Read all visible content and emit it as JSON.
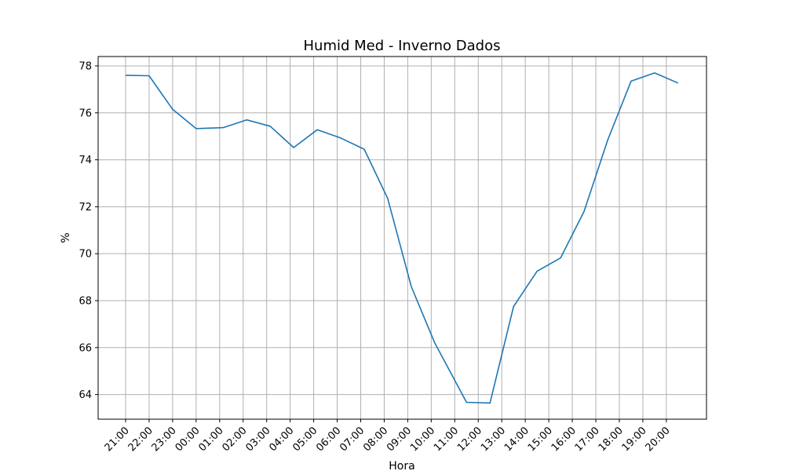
{
  "chart_data": {
    "type": "line",
    "title": "Humid Med - Inverno Dados",
    "xlabel": "Hora",
    "ylabel": "%",
    "grid": true,
    "ylim": [
      62.95,
      78.4
    ],
    "yticks": [
      64,
      66,
      68,
      70,
      72,
      74,
      76,
      78
    ],
    "xtick_labels": [
      "21:00",
      "22:00",
      "23:00",
      "00:00",
      "01:00",
      "02:00",
      "03:00",
      "04:00",
      "05:00",
      "06:00",
      "07:00",
      "08:00",
      "09:00",
      "10:00",
      "11:00",
      "12:00",
      "13:00",
      "14:00",
      "15:00",
      "16:00",
      "17:00",
      "18:00",
      "19:00",
      "20:00"
    ],
    "series": [
      {
        "color": "#1f77b4",
        "x": [
          0.0,
          1.0,
          2.0,
          3.0,
          4.15,
          5.15,
          6.15,
          7.15,
          8.15,
          9.15,
          10.15,
          11.15,
          12.15,
          13.15,
          14.5,
          15.5,
          16.5,
          17.5,
          18.5,
          19.5,
          20.5,
          21.5,
          22.5,
          23.5
        ],
        "y": [
          77.6,
          77.58,
          76.15,
          75.33,
          75.37,
          75.7,
          75.43,
          74.52,
          75.28,
          74.93,
          74.45,
          72.35,
          68.6,
          66.2,
          63.67,
          63.64,
          67.75,
          69.25,
          69.82,
          71.8,
          74.83,
          77.35,
          77.7,
          77.27
        ]
      }
    ]
  }
}
